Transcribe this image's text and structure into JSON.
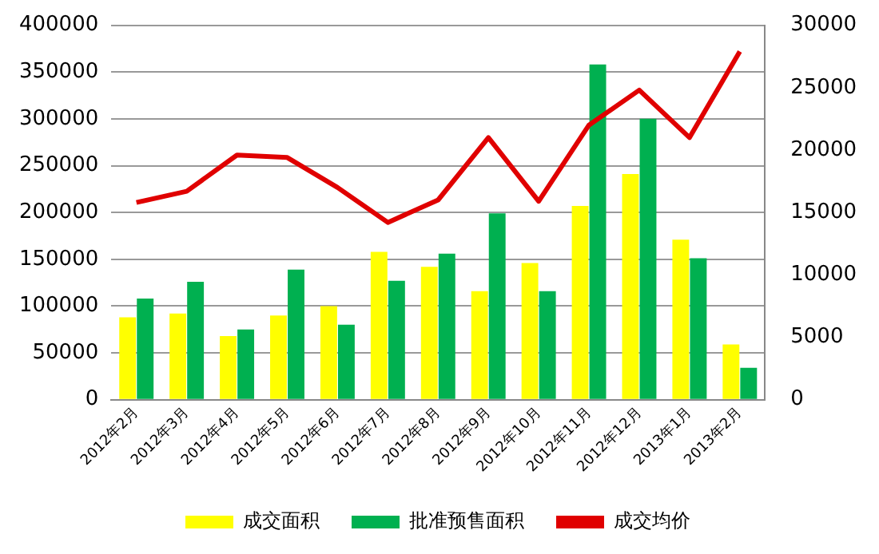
{
  "chart_data": {
    "type": "bar",
    "categories": [
      "2012年2月",
      "2012年3月",
      "2012年4月",
      "2012年5月",
      "2012年6月",
      "2012年7月",
      "2012年8月",
      "2012年9月",
      "2012年10月",
      "2012年11月",
      "2012年12月",
      "2013年1月",
      "2013年2月"
    ],
    "series": [
      {
        "name": "成交面积",
        "color": "#ffff00",
        "values": [
          88000,
          92000,
          68000,
          90000,
          100000,
          158000,
          142000,
          116000,
          146000,
          207000,
          241000,
          171000,
          59000
        ]
      },
      {
        "name": "批准预售面积",
        "color": "#00b050",
        "values": [
          108000,
          126000,
          75000,
          139000,
          80000,
          127000,
          156000,
          199000,
          116000,
          358000,
          300000,
          151000,
          34000
        ]
      },
      {
        "name": "成交均价",
        "type": "line",
        "axis": "y2",
        "color": "#e00000",
        "values": [
          15800,
          16700,
          19600,
          19400,
          17000,
          14200,
          16000,
          21000,
          15900,
          22000,
          24800,
          21000,
          27900
        ]
      }
    ],
    "ylim": [
      0,
      400000
    ],
    "yticks": [
      0,
      50000,
      100000,
      150000,
      200000,
      250000,
      300000,
      350000,
      400000
    ],
    "y2lim": [
      0,
      30000
    ],
    "y2ticks": [
      0,
      5000,
      10000,
      15000,
      20000,
      25000,
      30000
    ],
    "grid": "y",
    "legend": "bottom",
    "marker": "none",
    "line_style": "solid"
  }
}
